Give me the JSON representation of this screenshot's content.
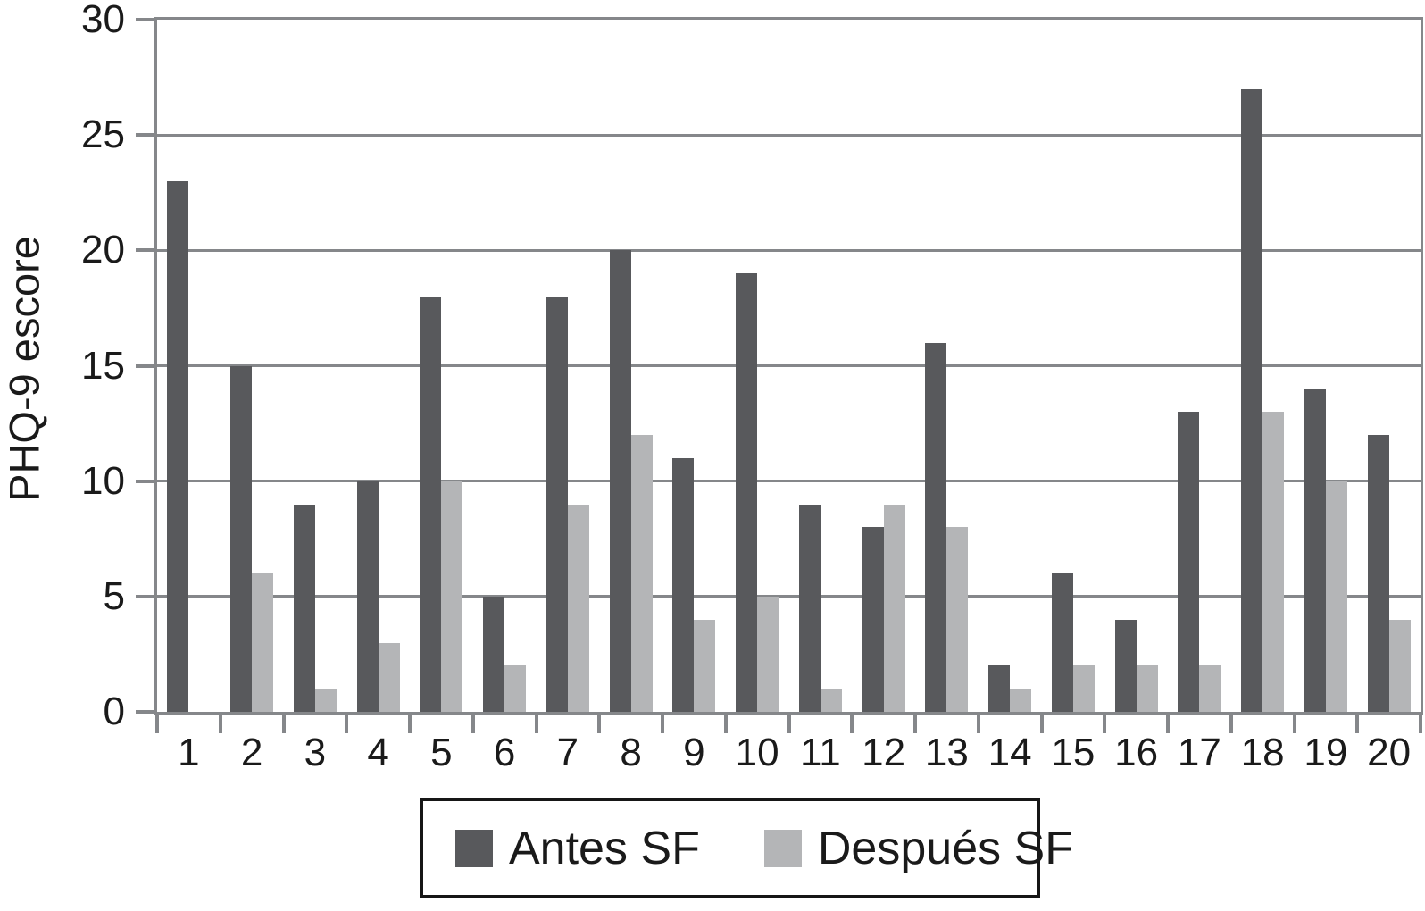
{
  "figure": {
    "background": "#ffffff"
  },
  "chart_data": {
    "type": "bar",
    "title": "",
    "ylabel": "PHQ-9 escore",
    "xlabel": "",
    "ylim": [
      0,
      30
    ],
    "yticks": [
      0,
      5,
      10,
      15,
      20,
      25,
      30
    ],
    "grid": true,
    "legend_position": "bottom",
    "axis_color": "#85878a",
    "text_color": "#1a1a1a",
    "categories": [
      "1",
      "2",
      "3",
      "4",
      "5",
      "6",
      "7",
      "8",
      "9",
      "10",
      "11",
      "12",
      "13",
      "14",
      "15",
      "16",
      "17",
      "18",
      "19",
      "20"
    ],
    "series": [
      {
        "name": "Antes SF",
        "color": "#58595c",
        "values": [
          23,
          15,
          9,
          10,
          18,
          5,
          18,
          20,
          11,
          19,
          9,
          8,
          16,
          2,
          6,
          4,
          13,
          27,
          14,
          12
        ]
      },
      {
        "name": "Después SF",
        "color": "#b4b5b7",
        "values": [
          0,
          6,
          1,
          3,
          10,
          2,
          9,
          12,
          4,
          5,
          1,
          9,
          8,
          1,
          2,
          2,
          2,
          13,
          10,
          4
        ]
      }
    ]
  }
}
